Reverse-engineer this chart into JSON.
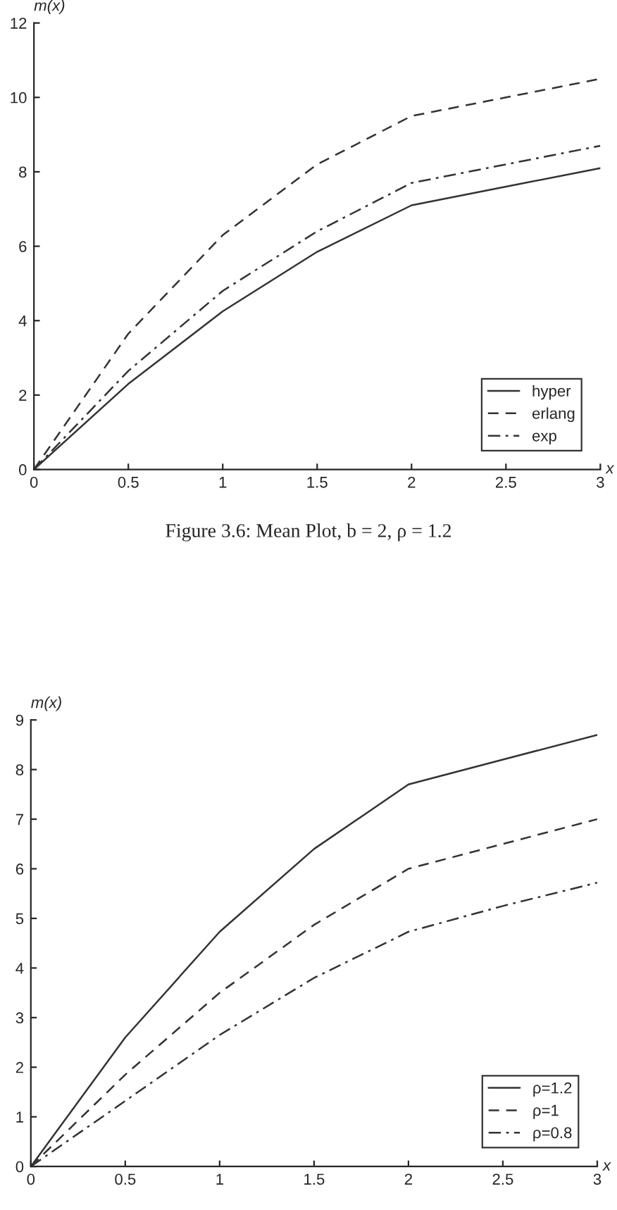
{
  "chart_data": [
    {
      "type": "line",
      "x": [
        0,
        0.5,
        1,
        1.5,
        2,
        2.5,
        3
      ],
      "xlabel": "x",
      "ylabel": "m(x)",
      "xlim": [
        0,
        3
      ],
      "ylim": [
        0,
        12
      ],
      "xticks": [
        0,
        0.5,
        1,
        1.5,
        2,
        2.5,
        3
      ],
      "yticks": [
        0,
        2,
        4,
        6,
        8,
        10,
        12
      ],
      "grid": false,
      "legend": "bottom right",
      "series": [
        {
          "name": "hyper",
          "color": "#333333",
          "line_style": "solid",
          "values": [
            0,
            2.3,
            4.25,
            5.85,
            7.1,
            7.6,
            8.1
          ]
        },
        {
          "name": "erlang",
          "color": "#333333",
          "line_style": "dashed",
          "values": [
            0,
            3.65,
            6.3,
            8.2,
            9.5,
            10.0,
            10.5
          ]
        },
        {
          "name": "exp",
          "color": "#333333",
          "line_style": "dashdot",
          "values": [
            0,
            2.65,
            4.8,
            6.4,
            7.7,
            8.2,
            8.7
          ]
        }
      ],
      "annotations": [
        "Figure 3.6: Mean Plot, b = 2, ρ = 1.2"
      ]
    },
    {
      "type": "line",
      "x": [
        0,
        0.5,
        1,
        1.5,
        2,
        2.5,
        3
      ],
      "xlabel": "x",
      "ylabel": "m(x)",
      "xlim": [
        0,
        3
      ],
      "ylim": [
        0,
        9
      ],
      "xticks": [
        0,
        0.5,
        1,
        1.5,
        2,
        2.5,
        3
      ],
      "yticks": [
        0,
        1,
        2,
        3,
        4,
        5,
        6,
        7,
        8,
        9
      ],
      "grid": false,
      "legend": "bottom right",
      "series": [
        {
          "name": "ρ=1.2",
          "color": "#333333",
          "line_style": "solid",
          "values": [
            0,
            2.6,
            4.73,
            6.4,
            7.7,
            8.2,
            8.7
          ]
        },
        {
          "name": "ρ=1",
          "color": "#333333",
          "line_style": "dashed",
          "values": [
            0,
            1.85,
            3.5,
            4.87,
            6.0,
            6.5,
            7.0
          ]
        },
        {
          "name": "ρ=0.8",
          "color": "#333333",
          "line_style": "dashdot",
          "values": [
            0,
            1.32,
            2.65,
            3.8,
            4.73,
            5.25,
            5.72
          ]
        }
      ]
    }
  ]
}
